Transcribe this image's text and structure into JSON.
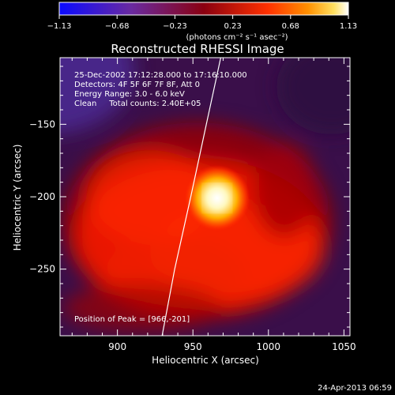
{
  "chart_data": {
    "type": "heatmap",
    "title": "Reconstructed RHESSI Image",
    "xlabel": "Heliocentric X (arcsec)",
    "ylabel": "Heliocentric Y (arcsec)",
    "xlim": [
      862,
      1054
    ],
    "ylim": [
      -296,
      -104
    ],
    "x_ticks": [
      900,
      950,
      1000,
      1050
    ],
    "y_ticks": [
      -150,
      -200,
      -250
    ],
    "colorbar": {
      "ticks": [
        "-1.13",
        "-0.68",
        "-0.23",
        "0.23",
        "0.68",
        "1.13"
      ],
      "unit_label": "(photons cm⁻² s⁻¹ asec⁻²)",
      "range": [
        -1.13,
        1.13
      ]
    },
    "annotations": {
      "time_range": "25-Dec-2002 17:12:28.000 to 17:16:10.000",
      "detectors": "Detectors: 4F 5F 6F 7F 8F, Att 0",
      "energy": "Energy Range: 3.0 - 6.0 keV",
      "clean": "Clean     Total counts: 2.40E+05",
      "peak": "Position of Peak = [966,-201]"
    },
    "peak": {
      "x": 966,
      "y": -201,
      "value": 1.13
    },
    "limb_curve": [
      [
        929.6,
        -296
      ],
      [
        937.9,
        -250
      ],
      [
        948.6,
        -200
      ],
      [
        958.9,
        -150
      ],
      [
        968.4,
        -104
      ]
    ]
  },
  "timestamp": "24-Apr-2013 06:59",
  "colors": {
    "background": "#000000",
    "text": "#ffffff",
    "colormap": "rainbow-fire"
  }
}
